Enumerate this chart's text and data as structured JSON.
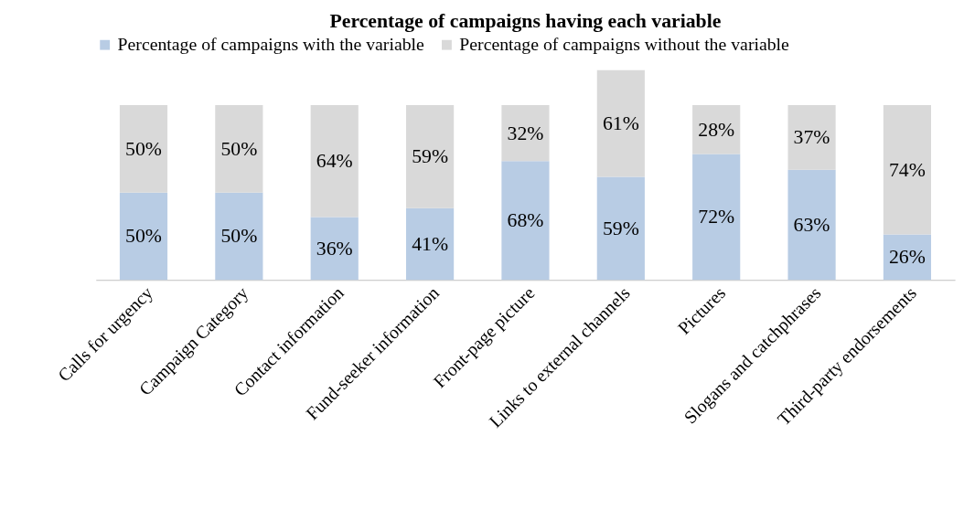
{
  "chart_data": {
    "type": "bar",
    "title": "Percentage of campaigns having each variable",
    "categories": [
      "Calls for urgency",
      "Campaign Category",
      "Contact information",
      "Fund-seeker information",
      "Front-page picture",
      "Links to external channels",
      "Pictures",
      "Slogans and catchphrases",
      "Third-party endorsements"
    ],
    "series": [
      {
        "name": "Percentage of campaigns with the variable",
        "color": "#b8cce4",
        "values": [
          50,
          50,
          36,
          41,
          68,
          59,
          72,
          63,
          26
        ],
        "value_labels": [
          "50%",
          "50%",
          "36%",
          "41%",
          "68%",
          "59%",
          "72%",
          "63%",
          "26%"
        ]
      },
      {
        "name": "Percentage of campaigns without the variable",
        "color": "#d9d9d9",
        "values": [
          50,
          50,
          64,
          59,
          32,
          61,
          28,
          37,
          74
        ],
        "value_labels": [
          "50%",
          "50%",
          "64%",
          "59%",
          "32%",
          "61%",
          "28%",
          "37%",
          "74%"
        ]
      }
    ],
    "stacked": true,
    "legend": "top",
    "grid": false
  }
}
